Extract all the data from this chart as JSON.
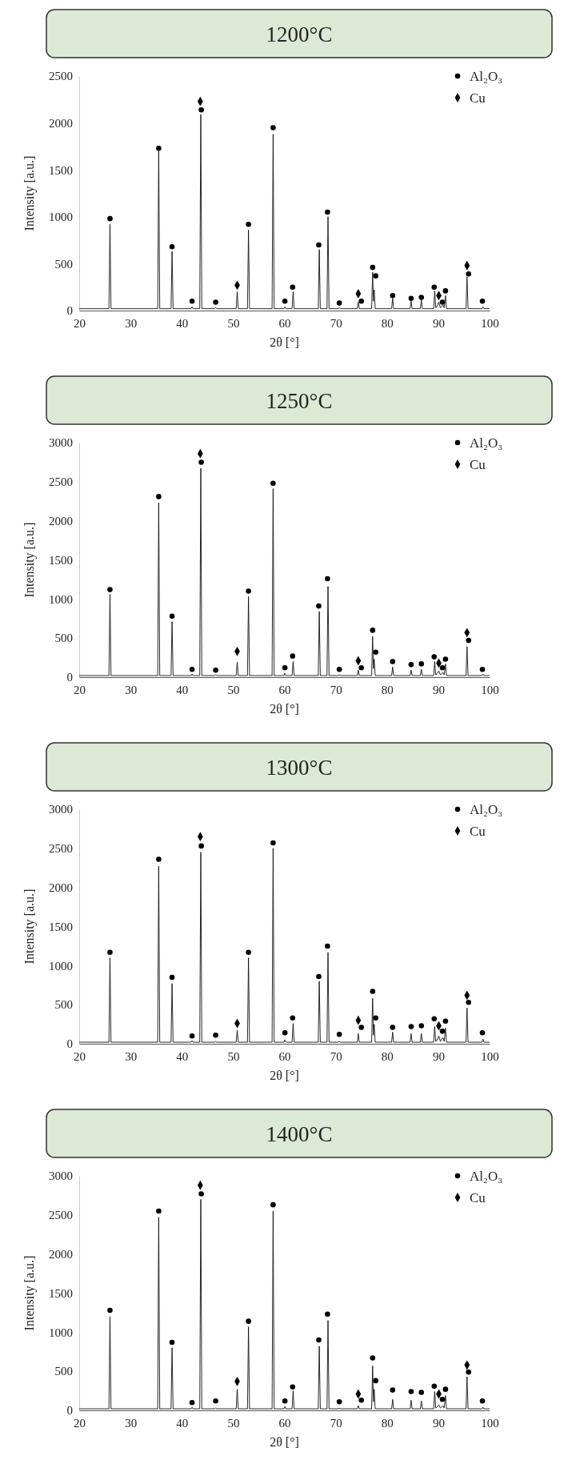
{
  "chart_data": [
    {
      "type": "line",
      "title": "1200°C",
      "xlabel": "2θ [°]",
      "ylabel": "Intensity [a.u.]",
      "xlim": [
        20,
        100
      ],
      "xticks": [
        20,
        30,
        40,
        50,
        60,
        70,
        80,
        90,
        100
      ],
      "ylim": [
        0,
        2500
      ],
      "yticks": [
        0,
        500,
        1000,
        1500,
        2000,
        2500
      ],
      "legend": "top right",
      "series": [
        {
          "type": "line",
          "color": "#111111",
          "marker": "none",
          "x": [
            20,
            25.8,
            26.0,
            26.2,
            35.3,
            35.5,
            35.7,
            37.9,
            38.1,
            38.3,
            41.8,
            42.0,
            42.2,
            43.5,
            43.7,
            43.9,
            46.4,
            46.6,
            46.8,
            50.6,
            50.8,
            51.0,
            52.8,
            53.0,
            53.2,
            57.6,
            57.8,
            58.0,
            59.9,
            60.1,
            60.3,
            61.5,
            61.7,
            61.9,
            66.6,
            66.8,
            67.0,
            68.3,
            68.5,
            68.7,
            70.5,
            70.7,
            70.9,
            74.2,
            74.4,
            74.6,
            77.0,
            77.2,
            77.35,
            77.5,
            77.7,
            80.9,
            81.1,
            81.3,
            84.5,
            84.7,
            84.9,
            86.5,
            86.7,
            86.9,
            89.1,
            89.3,
            89.5,
            89.7,
            90.1,
            90.4,
            90.9,
            91.15,
            91.4,
            91.6,
            95.4,
            95.6,
            95.8,
            98.5,
            98.7,
            98.9,
            100
          ],
          "values": [
            20,
            20,
            920,
            20,
            20,
            1700,
            20,
            20,
            630,
            20,
            20,
            40,
            20,
            20,
            2090,
            20,
            20,
            30,
            20,
            20,
            200,
            20,
            20,
            860,
            20,
            20,
            1880,
            20,
            20,
            40,
            20,
            20,
            200,
            20,
            20,
            650,
            20,
            20,
            1000,
            20,
            20,
            30,
            20,
            20,
            90,
            20,
            20,
            410,
            100,
            220,
            20,
            20,
            130,
            20,
            20,
            100,
            20,
            20,
            110,
            20,
            20,
            210,
            30,
            40,
            90,
            30,
            60,
            30,
            160,
            20,
            20,
            360,
            20,
            20,
            40,
            20,
            20
          ]
        },
        {
          "type": "scatter",
          "name": "Al₂O₃",
          "color": "#000000",
          "marker": "circle",
          "x": [
            26.0,
            35.5,
            38.1,
            42.0,
            43.8,
            46.6,
            53.0,
            57.8,
            60.1,
            61.6,
            66.7,
            68.4,
            70.7,
            75.0,
            77.2,
            77.8,
            81.1,
            84.7,
            86.7,
            89.2,
            90.8,
            91.4,
            95.9,
            98.6
          ],
          "values": [
            980,
            1730,
            680,
            100,
            2140,
            90,
            920,
            1950,
            100,
            250,
            700,
            1050,
            80,
            100,
            460,
            370,
            160,
            130,
            140,
            250,
            90,
            210,
            390,
            100
          ]
        },
        {
          "type": "scatter",
          "name": "Cu",
          "color": "#000000",
          "marker": "diamond",
          "x": [
            43.6,
            50.8,
            74.4,
            90.1,
            95.6
          ],
          "values": [
            2230,
            270,
            180,
            160,
            480
          ]
        }
      ]
    },
    {
      "type": "line",
      "title": "1250°C",
      "xlabel": "2θ [°]",
      "ylabel": "Intensity [a.u.]",
      "xlim": [
        20,
        100
      ],
      "xticks": [
        20,
        30,
        40,
        50,
        60,
        70,
        80,
        90,
        100
      ],
      "ylim": [
        0,
        3000
      ],
      "yticks": [
        0,
        500,
        1000,
        1500,
        2000,
        2500,
        3000
      ],
      "legend": "top right",
      "series": [
        {
          "type": "line",
          "color": "#111111",
          "marker": "none",
          "x": [
            20,
            25.8,
            26.0,
            26.2,
            35.3,
            35.5,
            35.7,
            37.9,
            38.1,
            38.3,
            41.8,
            42.0,
            42.2,
            43.5,
            43.7,
            43.9,
            46.4,
            46.6,
            46.8,
            50.6,
            50.8,
            51.0,
            52.8,
            53.0,
            53.2,
            57.6,
            57.8,
            58.0,
            59.9,
            60.1,
            60.3,
            61.5,
            61.7,
            61.9,
            66.6,
            66.8,
            67.0,
            68.3,
            68.5,
            68.7,
            70.5,
            70.7,
            70.9,
            74.2,
            74.4,
            74.6,
            77.0,
            77.2,
            77.35,
            77.5,
            77.7,
            80.9,
            81.1,
            81.3,
            84.5,
            84.7,
            84.9,
            86.5,
            86.7,
            86.9,
            89.1,
            89.3,
            89.5,
            89.7,
            90.1,
            90.4,
            90.9,
            91.15,
            91.4,
            91.6,
            95.4,
            95.6,
            95.8,
            98.5,
            98.7,
            98.9,
            100
          ],
          "values": [
            20,
            20,
            1060,
            20,
            20,
            2230,
            20,
            20,
            710,
            20,
            20,
            40,
            20,
            20,
            2670,
            20,
            20,
            30,
            20,
            20,
            190,
            20,
            20,
            1030,
            20,
            20,
            2410,
            20,
            20,
            50,
            20,
            20,
            200,
            20,
            20,
            840,
            20,
            20,
            1160,
            20,
            20,
            30,
            20,
            20,
            90,
            20,
            20,
            520,
            110,
            230,
            20,
            20,
            130,
            20,
            20,
            90,
            20,
            20,
            100,
            20,
            20,
            200,
            30,
            40,
            80,
            30,
            60,
            30,
            170,
            20,
            20,
            390,
            20,
            20,
            40,
            20,
            20
          ]
        },
        {
          "type": "scatter",
          "name": "Al₂O₃",
          "color": "#000000",
          "marker": "circle",
          "x": [
            26.0,
            35.5,
            38.1,
            42.0,
            43.8,
            46.6,
            53.0,
            57.8,
            60.1,
            61.6,
            66.7,
            68.4,
            70.7,
            75.0,
            77.2,
            77.8,
            81.1,
            84.7,
            86.7,
            89.2,
            90.8,
            91.4,
            95.9,
            98.6
          ],
          "values": [
            1120,
            2310,
            780,
            100,
            2750,
            90,
            1100,
            2480,
            120,
            270,
            910,
            1260,
            100,
            120,
            600,
            320,
            200,
            160,
            170,
            260,
            120,
            230,
            470,
            100
          ]
        },
        {
          "type": "scatter",
          "name": "Cu",
          "color": "#000000",
          "marker": "diamond",
          "x": [
            43.6,
            50.8,
            74.4,
            90.1,
            95.6
          ],
          "values": [
            2860,
            330,
            210,
            180,
            570
          ]
        }
      ]
    },
    {
      "type": "line",
      "title": "1300°C",
      "xlabel": "2θ [°]",
      "ylabel": "Intensity [a.u.]",
      "xlim": [
        20,
        100
      ],
      "xticks": [
        20,
        30,
        40,
        50,
        60,
        70,
        80,
        90,
        100
      ],
      "ylim": [
        0,
        3000
      ],
      "yticks": [
        0,
        500,
        1000,
        1500,
        2000,
        2500,
        3000
      ],
      "legend": "top right",
      "series": [
        {
          "type": "line",
          "color": "#111111",
          "marker": "none",
          "x": [
            20,
            25.8,
            26.0,
            26.2,
            35.3,
            35.5,
            35.7,
            37.9,
            38.1,
            38.3,
            41.8,
            42.0,
            42.2,
            43.5,
            43.7,
            43.9,
            46.4,
            46.6,
            46.8,
            50.6,
            50.8,
            51.0,
            52.8,
            53.0,
            53.2,
            57.6,
            57.8,
            58.0,
            59.9,
            60.1,
            60.3,
            61.5,
            61.7,
            61.9,
            66.6,
            66.8,
            67.0,
            68.3,
            68.5,
            68.7,
            70.5,
            70.7,
            70.9,
            74.2,
            74.4,
            74.6,
            77.0,
            77.2,
            77.35,
            77.5,
            77.7,
            80.9,
            81.1,
            81.3,
            84.5,
            84.7,
            84.9,
            86.5,
            86.7,
            86.9,
            89.1,
            89.3,
            89.5,
            89.7,
            90.1,
            90.4,
            90.9,
            91.15,
            91.4,
            91.6,
            95.4,
            95.6,
            95.8,
            98.5,
            98.7,
            98.9,
            100
          ],
          "values": [
            20,
            20,
            1100,
            20,
            20,
            2270,
            20,
            20,
            770,
            20,
            20,
            40,
            20,
            20,
            2450,
            20,
            20,
            30,
            20,
            20,
            170,
            20,
            20,
            1100,
            20,
            20,
            2500,
            20,
            20,
            50,
            20,
            20,
            260,
            20,
            20,
            800,
            20,
            20,
            1170,
            20,
            20,
            30,
            20,
            20,
            130,
            20,
            20,
            580,
            110,
            250,
            20,
            20,
            150,
            20,
            20,
            130,
            20,
            20,
            130,
            20,
            20,
            220,
            30,
            40,
            100,
            30,
            80,
            30,
            200,
            20,
            20,
            460,
            20,
            20,
            60,
            20,
            20
          ]
        },
        {
          "type": "scatter",
          "name": "Al₂O₃",
          "color": "#000000",
          "marker": "circle",
          "x": [
            26.0,
            35.5,
            38.1,
            42.0,
            43.8,
            46.6,
            53.0,
            57.8,
            60.1,
            61.6,
            66.7,
            68.4,
            70.7,
            75.0,
            77.2,
            77.8,
            81.1,
            84.7,
            86.7,
            89.2,
            90.8,
            91.4,
            95.9,
            98.6
          ],
          "values": [
            1170,
            2360,
            850,
            100,
            2530,
            110,
            1170,
            2570,
            140,
            330,
            860,
            1250,
            120,
            210,
            670,
            330,
            210,
            220,
            230,
            320,
            160,
            290,
            530,
            140
          ]
        },
        {
          "type": "scatter",
          "name": "Cu",
          "color": "#000000",
          "marker": "diamond",
          "x": [
            43.6,
            50.8,
            74.4,
            90.1,
            95.6
          ],
          "values": [
            2650,
            260,
            300,
            230,
            620
          ]
        }
      ]
    },
    {
      "type": "line",
      "title": "1400°C",
      "xlabel": "2θ [°]",
      "ylabel": "Intensity [a.u.]",
      "xlim": [
        20,
        100
      ],
      "xticks": [
        20,
        30,
        40,
        50,
        60,
        70,
        80,
        90,
        100
      ],
      "ylim": [
        0,
        3000
      ],
      "yticks": [
        0,
        500,
        1000,
        1500,
        2000,
        2500,
        3000
      ],
      "legend": "top right",
      "series": [
        {
          "type": "line",
          "color": "#111111",
          "marker": "none",
          "x": [
            20,
            25.8,
            26.0,
            26.2,
            35.3,
            35.5,
            35.7,
            37.9,
            38.1,
            38.3,
            41.8,
            42.0,
            42.2,
            43.5,
            43.7,
            43.9,
            46.4,
            46.6,
            46.8,
            50.6,
            50.8,
            51.0,
            52.8,
            53.0,
            53.2,
            57.6,
            57.8,
            58.0,
            59.9,
            60.1,
            60.3,
            61.5,
            61.7,
            61.9,
            66.6,
            66.8,
            67.0,
            68.3,
            68.5,
            68.7,
            70.5,
            70.7,
            70.9,
            74.2,
            74.4,
            74.6,
            77.0,
            77.2,
            77.35,
            77.5,
            77.7,
            80.9,
            81.1,
            81.3,
            84.5,
            84.7,
            84.9,
            86.5,
            86.7,
            86.9,
            89.1,
            89.3,
            89.5,
            89.7,
            90.1,
            90.4,
            90.9,
            91.15,
            91.4,
            91.6,
            95.4,
            95.6,
            95.8,
            98.5,
            98.7,
            98.9,
            100
          ],
          "values": [
            20,
            20,
            1200,
            20,
            20,
            2470,
            20,
            20,
            800,
            20,
            20,
            40,
            20,
            20,
            2700,
            20,
            20,
            30,
            20,
            20,
            270,
            20,
            20,
            1070,
            20,
            20,
            2550,
            20,
            20,
            50,
            20,
            20,
            250,
            20,
            20,
            820,
            20,
            20,
            1150,
            20,
            20,
            30,
            20,
            20,
            60,
            20,
            20,
            570,
            110,
            270,
            20,
            20,
            140,
            20,
            20,
            130,
            20,
            20,
            120,
            20,
            20,
            240,
            30,
            40,
            70,
            30,
            60,
            30,
            190,
            20,
            20,
            430,
            20,
            20,
            40,
            20,
            20
          ]
        },
        {
          "type": "scatter",
          "name": "Al₂O₃",
          "color": "#000000",
          "marker": "circle",
          "x": [
            26.0,
            35.5,
            38.1,
            42.0,
            43.8,
            46.6,
            53.0,
            57.8,
            60.1,
            61.6,
            66.7,
            68.4,
            70.7,
            75.0,
            77.2,
            77.8,
            81.1,
            84.7,
            86.7,
            89.2,
            90.8,
            91.4,
            95.9,
            98.6
          ],
          "values": [
            1280,
            2550,
            870,
            100,
            2770,
            120,
            1140,
            2630,
            120,
            300,
            900,
            1230,
            110,
            130,
            670,
            380,
            260,
            240,
            230,
            310,
            140,
            270,
            490,
            120
          ]
        },
        {
          "type": "scatter",
          "name": "Cu",
          "color": "#000000",
          "marker": "diamond",
          "x": [
            43.6,
            50.8,
            74.4,
            90.1,
            95.6
          ],
          "values": [
            2880,
            370,
            210,
            210,
            580
          ]
        }
      ]
    }
  ]
}
